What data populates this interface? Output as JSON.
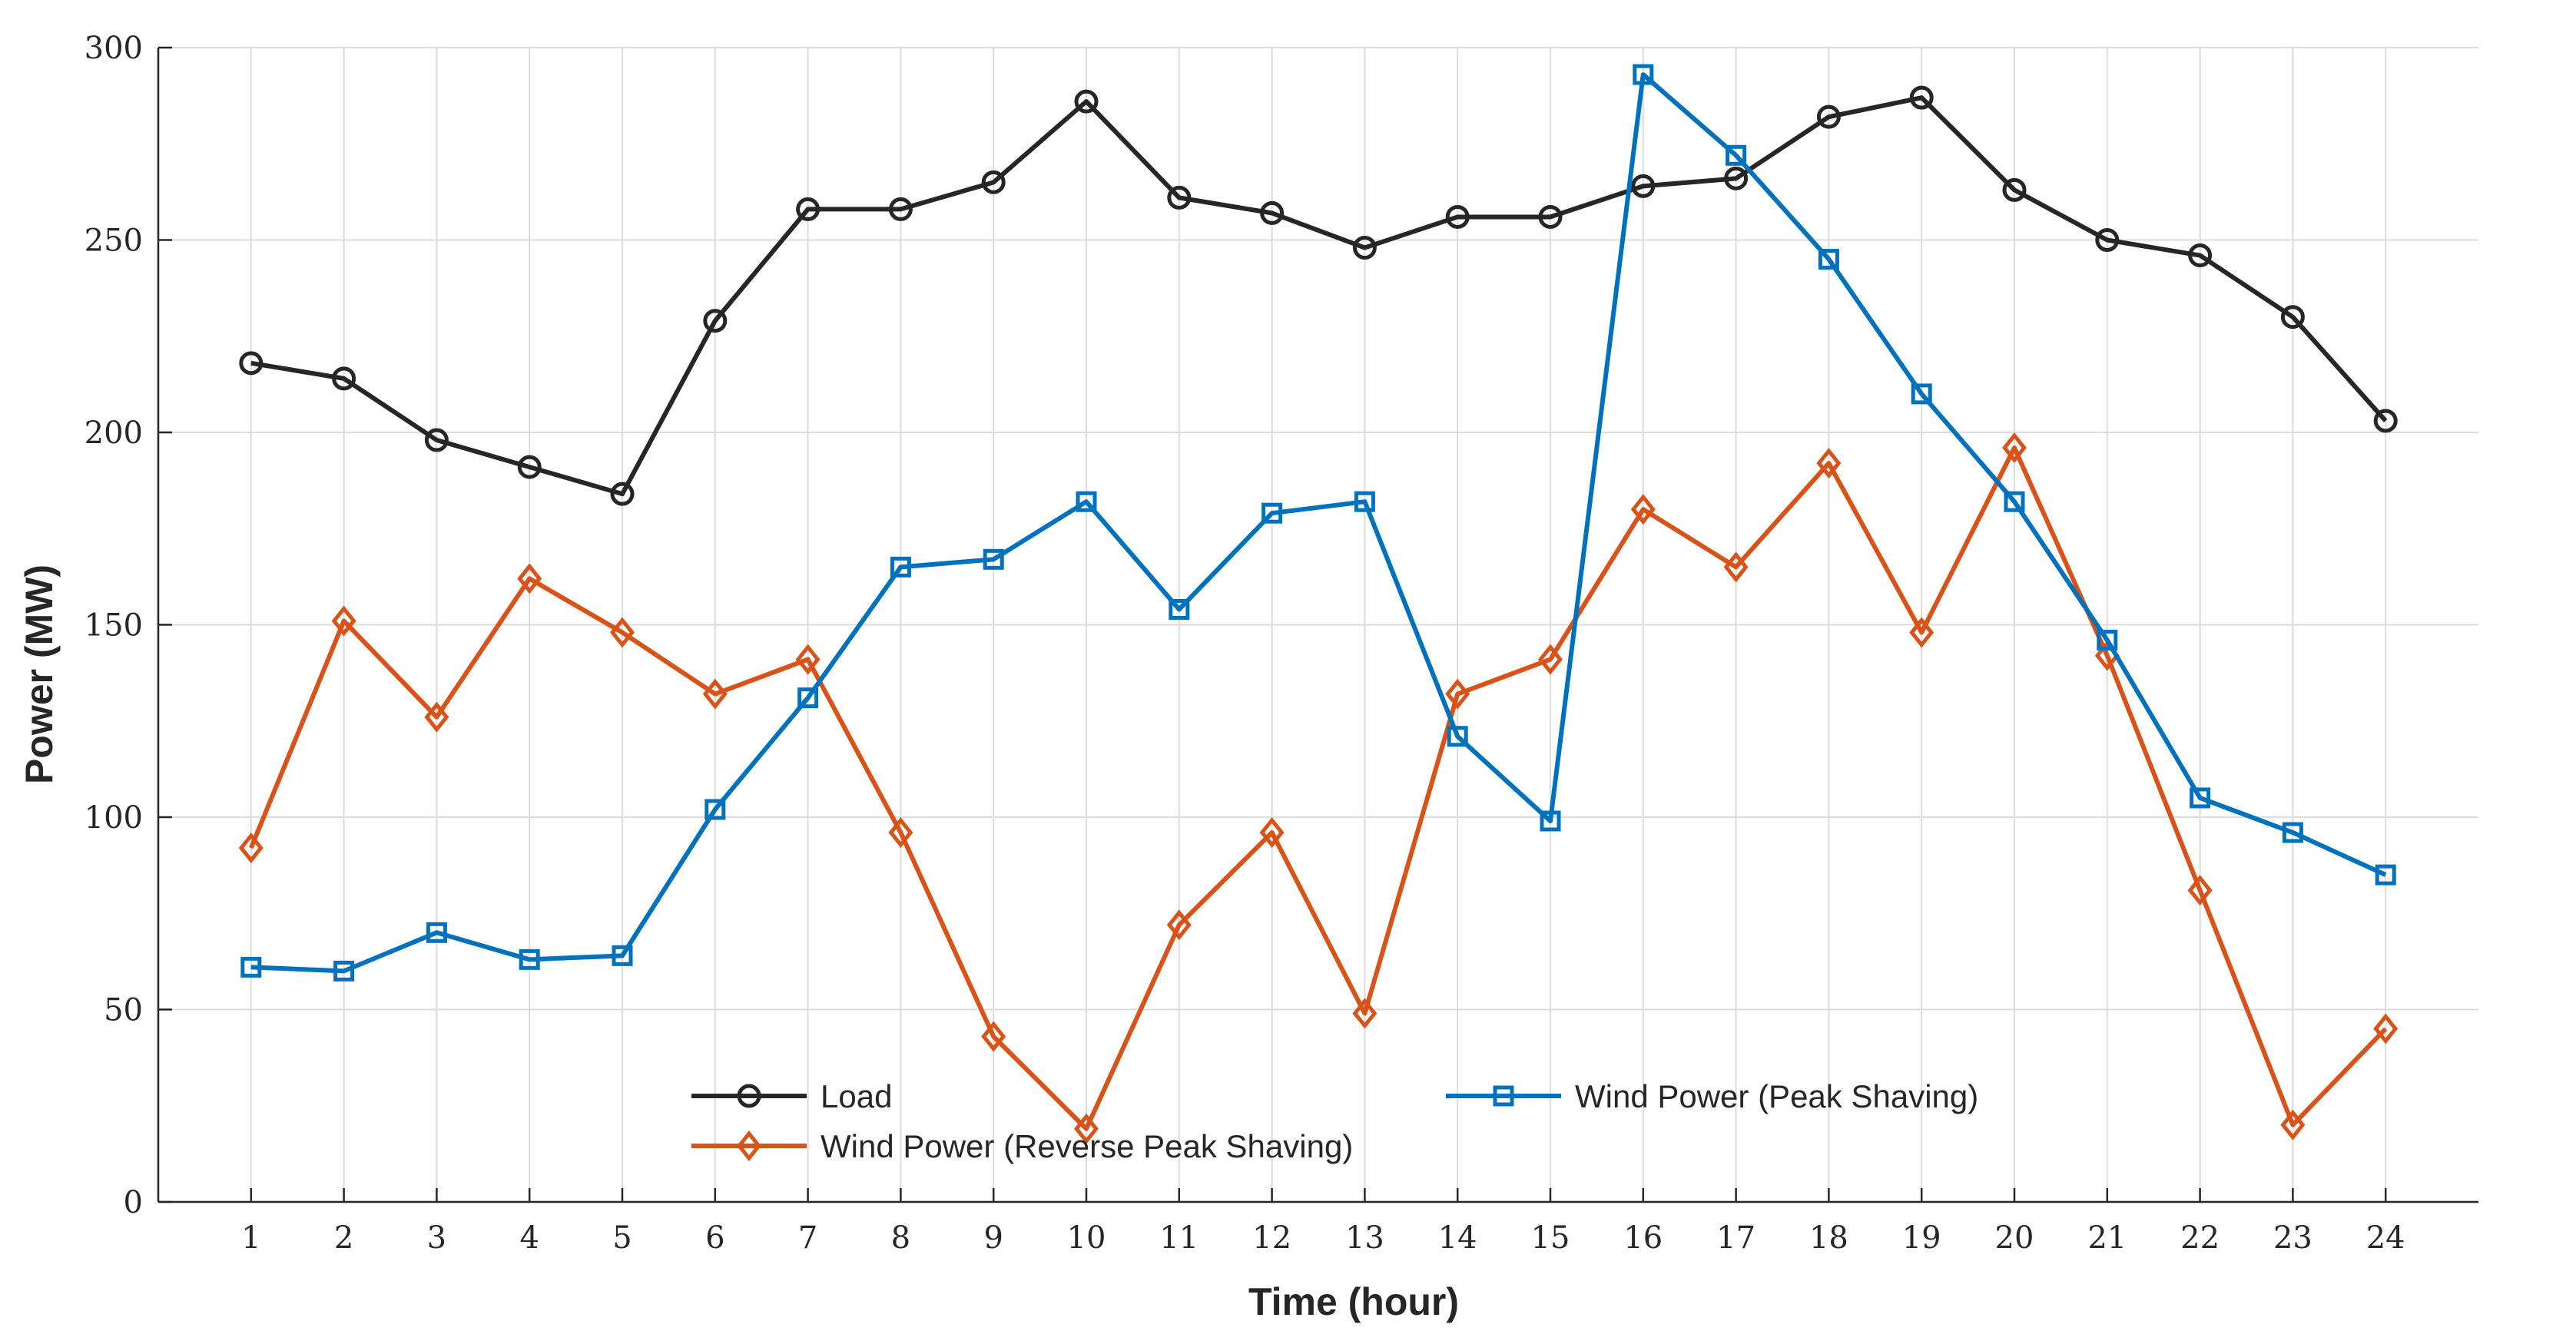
{
  "chart_data": {
    "type": "line",
    "title": "",
    "xlabel": "Time (hour)",
    "ylabel": "Power (MW)",
    "x": [
      1,
      2,
      3,
      4,
      5,
      6,
      7,
      8,
      9,
      10,
      11,
      12,
      13,
      14,
      15,
      16,
      17,
      18,
      19,
      20,
      21,
      22,
      23,
      24
    ],
    "xlim": [
      0,
      25
    ],
    "ylim": [
      0,
      300
    ],
    "yticks": [
      0,
      50,
      100,
      150,
      200,
      250,
      300
    ],
    "grid": true,
    "legend_position": "bottom-center",
    "series": [
      {
        "name": "Load",
        "marker": "circle",
        "color": "#262626",
        "values": [
          218,
          214,
          198,
          191,
          184,
          229,
          258,
          258,
          265,
          286,
          261,
          257,
          248,
          256,
          256,
          264,
          266,
          282,
          287,
          263,
          250,
          246,
          230,
          203
        ]
      },
      {
        "name": "Wind Power (Reverse Peak Shaving)",
        "marker": "diamond",
        "color": "#d95319",
        "values": [
          92,
          151,
          126,
          162,
          148,
          132,
          141,
          96,
          43,
          19,
          72,
          96,
          49,
          132,
          141,
          180,
          165,
          192,
          148,
          196,
          142,
          81,
          20,
          45
        ]
      },
      {
        "name": "Wind Power (Peak Shaving)",
        "marker": "square",
        "color": "#0072bd",
        "values": [
          61,
          60,
          70,
          63,
          64,
          102,
          131,
          165,
          167,
          182,
          154,
          179,
          182,
          121,
          99,
          293,
          272,
          245,
          210,
          182,
          146,
          105,
          96,
          85
        ]
      }
    ]
  }
}
